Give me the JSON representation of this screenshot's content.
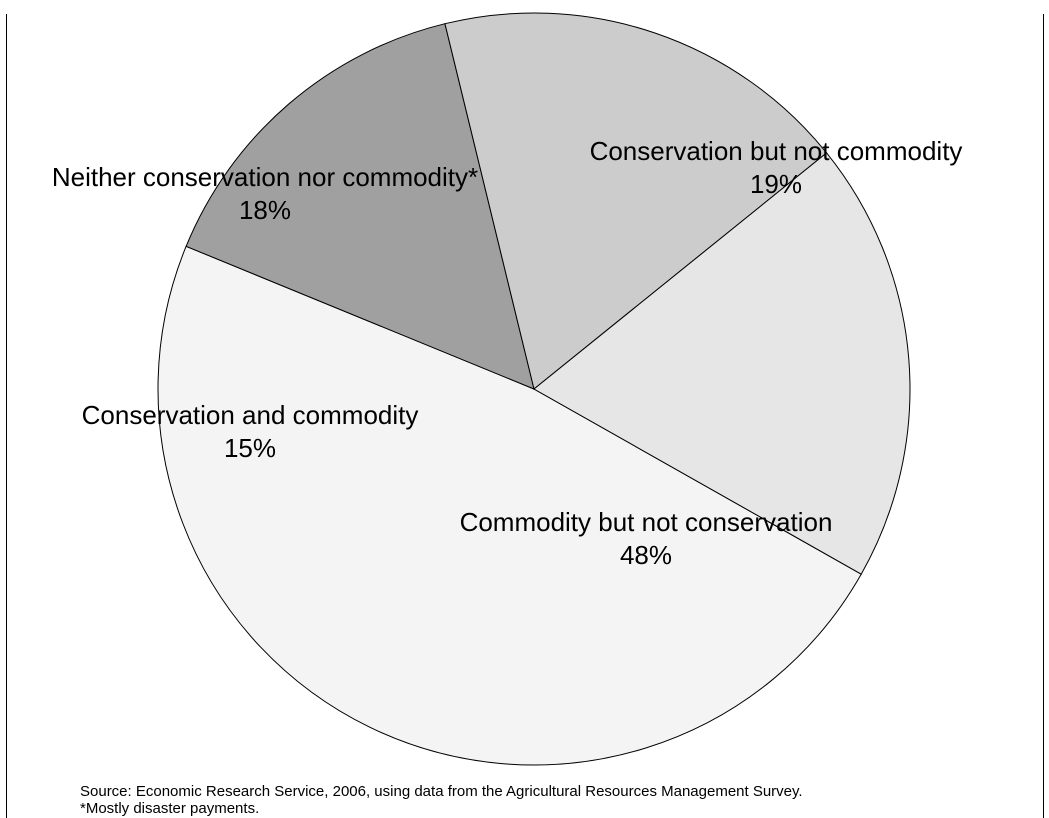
{
  "chart_data": {
    "type": "pie",
    "title": "",
    "slices": [
      {
        "label": "Commodity but not conservation",
        "value": 48,
        "value_label": "48%",
        "color": "#f4f4f4"
      },
      {
        "label": "Conservation and commodity",
        "value": 15,
        "value_label": "15%",
        "color": "#a0a0a0"
      },
      {
        "label": "Neither conservation nor commodity*",
        "value": 18,
        "value_label": "18%",
        "color": "#cccccc"
      },
      {
        "label": "Conservation but not commodity",
        "value": 19,
        "value_label": "19%",
        "color": "#e6e6e6"
      }
    ]
  },
  "footnotes": {
    "source": "Source: Economic Research Service, 2006, using data from the Agricultural Resources Management Survey.",
    "note": "*Mostly disaster payments."
  }
}
